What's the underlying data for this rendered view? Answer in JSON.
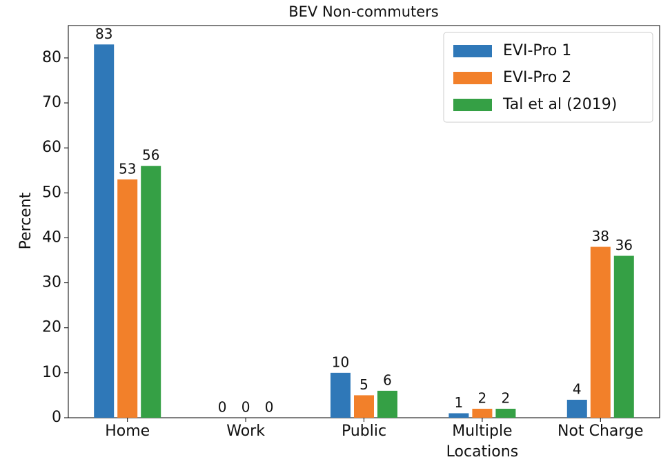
{
  "chart_data": {
    "type": "bar",
    "title": "BEV Non-commuters",
    "ylabel": "Percent",
    "categories": [
      "Home",
      "Work",
      "Public",
      "Multiple Locations",
      "Not Charge"
    ],
    "series": [
      {
        "name": "EVI-Pro 1",
        "color": "#2f78b8",
        "values": [
          83,
          0,
          10,
          1,
          4
        ]
      },
      {
        "name": "EVI-Pro 2",
        "color": "#f2802a",
        "values": [
          53,
          0,
          5,
          2,
          38
        ]
      },
      {
        "name": "Tal et al (2019)",
        "color": "#35a045",
        "values": [
          56,
          0,
          6,
          2,
          36
        ]
      }
    ],
    "ylim": [
      0,
      87.2
    ],
    "yticks": [
      0,
      10,
      20,
      30,
      40,
      50,
      60,
      70,
      80
    ],
    "grid": false,
    "legend": "upper right"
  }
}
